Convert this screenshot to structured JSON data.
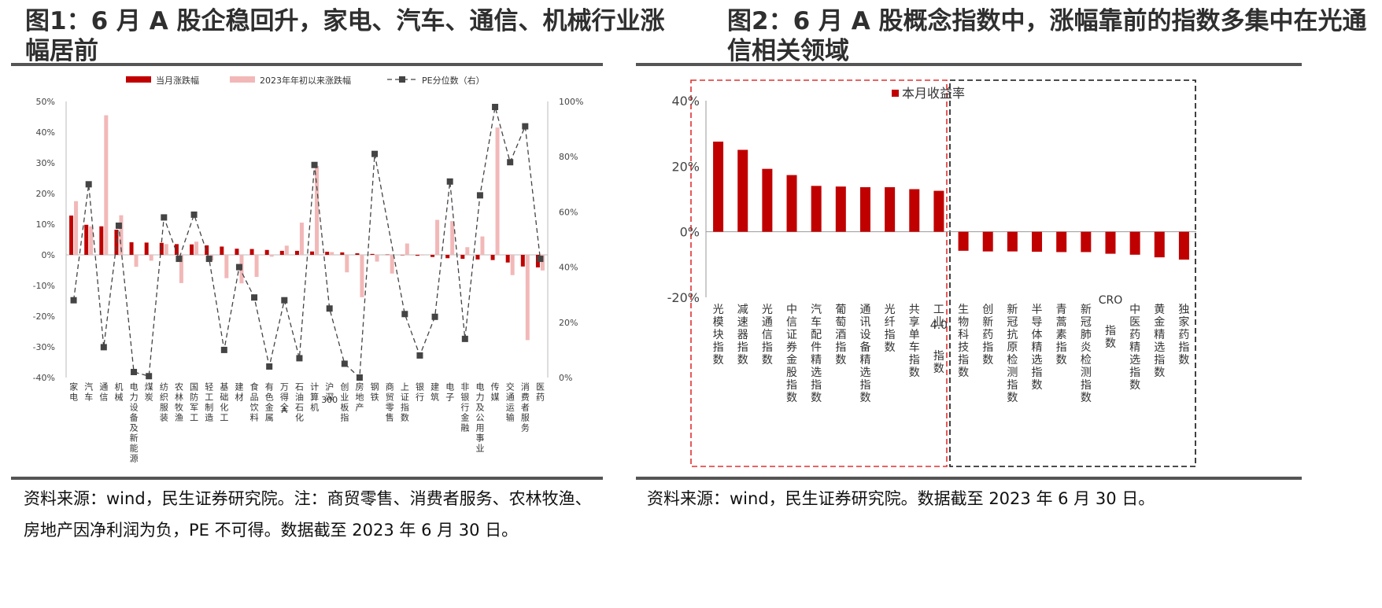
{
  "panel1": {
    "title": "图1：6 月 A 股企稳回升，家电、汽车、通信、机械行业涨幅居前",
    "source": "资料来源：wind，民生证券研究院。注：商贸零售、消费者服务、农林牧渔、房地产因净利润为负，PE 不可得。数据截至 2023 年 6 月 30 日。"
  },
  "panel2": {
    "title": "图2：6 月 A 股概念指数中，涨幅靠前的指数多集中在光通信相关领域",
    "source": "资料来源：wind，民生证券研究院。数据截至 2023 年 6 月 30 日。"
  },
  "colors": {
    "dark_red": "#c00000",
    "light_pink": "#f2b8b8",
    "pe_line": "#444444",
    "box_red": "#e03030",
    "box_black": "#111111"
  },
  "chart_data": [
    {
      "type": "bar",
      "categories": [
        "家电",
        "汽车",
        "通信",
        "机械",
        "电力设备及新能源",
        "煤炭",
        "纺织服装",
        "农林牧渔",
        "国防军工",
        "轻工制造",
        "基础化工",
        "建材",
        "食品饮料",
        "有色金属",
        "万得全A",
        "石油石化",
        "计算机",
        "沪深300",
        "创业板指",
        "房地产",
        "钢铁",
        "商贸零售",
        "上证指数",
        "银行",
        "建筑",
        "电子",
        "非银行金融",
        "电力及公用事业",
        "传媒",
        "交通运输",
        "消费者服务",
        "医药"
      ],
      "series": [
        {
          "name": "当月涨跌幅",
          "axis": "left",
          "values": [
            12.8,
            9.8,
            9.3,
            8.2,
            4.1,
            4.0,
            3.9,
            3.5,
            3.4,
            3.1,
            2.7,
            2.0,
            1.9,
            1.6,
            1.3,
            1.3,
            1.1,
            1.0,
            0.8,
            0.5,
            0.3,
            0.1,
            0.0,
            -0.3,
            -0.7,
            -1.1,
            -1.3,
            -1.5,
            -1.7,
            -2.5,
            -3.8,
            -4.1
          ]
        },
        {
          "name": "2023年年初以来涨跌幅",
          "axis": "left",
          "values": [
            17.5,
            9.3,
            45.5,
            12.9,
            -3.9,
            -1.9,
            3.5,
            -9.2,
            4.3,
            -1.8,
            -7.6,
            -9.3,
            -7.2,
            -0.6,
            3.0,
            10.5,
            29.0,
            0.9,
            -5.7,
            -13.8,
            -2.2,
            -6.1,
            3.7,
            -0.2,
            11.4,
            11.0,
            2.5,
            6.0,
            41.5,
            -6.6,
            -27.8,
            -5.1
          ]
        },
        {
          "name": "PE分位数（右）",
          "axis": "right",
          "values": [
            28,
            70,
            11,
            55,
            2,
            0.5,
            58,
            43,
            59,
            43,
            10,
            40,
            29,
            4,
            28,
            7,
            77,
            25,
            5,
            0,
            81,
            null,
            23,
            8,
            22,
            71,
            14,
            66,
            98,
            78,
            91,
            43
          ]
        }
      ],
      "legend": [
        "当月涨跌幅",
        "2023年年初以来涨跌幅",
        "PE分位数（右）"
      ],
      "ylim": [
        -40,
        50
      ],
      "y_ticks": [
        "50%",
        "40%",
        "30%",
        "20%",
        "10%",
        "0%",
        "-10%",
        "-20%",
        "-30%",
        "-40%"
      ],
      "y2lim": [
        0,
        100
      ],
      "y2_ticks": [
        "100%",
        "80%",
        "60%",
        "40%",
        "20%",
        "0%"
      ],
      "legend_position": "top"
    },
    {
      "type": "bar",
      "categories": [
        "光模块指数",
        "减速器指数",
        "光通信指数",
        "中信证券金股指数",
        "汽车配件精选指数",
        "葡萄酒指数",
        "通讯设备精选指数",
        "光纤指数",
        "共享单车指数",
        "工业4.0指数",
        "生物科技指数",
        "创新药指数",
        "新冠抗原检测指数",
        "半导体精选指数",
        "青蒿素指数",
        "新冠肺炎检测指数",
        "CRO指数",
        "中医药精选指数",
        "黄金精选指数",
        "独家药指数"
      ],
      "series": [
        {
          "name": "本月收益率",
          "values": [
            27.5,
            25.0,
            19.2,
            17.3,
            14.0,
            13.8,
            13.6,
            13.6,
            13.0,
            12.5,
            -5.8,
            -6.0,
            -6.0,
            -6.1,
            -6.2,
            -6.2,
            -6.7,
            -7.0,
            -7.8,
            -8.5
          ]
        }
      ],
      "legend": [
        "本月收益率"
      ],
      "ylim": [
        -20,
        40
      ],
      "y_ticks": [
        "40%",
        "20%",
        "0%",
        "-20%"
      ],
      "legend_position": "top"
    }
  ]
}
